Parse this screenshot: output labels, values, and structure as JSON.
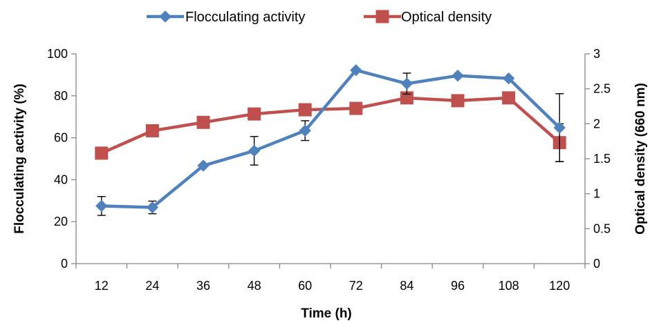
{
  "chart_data": {
    "type": "line",
    "xlabel": "Time (h)",
    "ylabel_left": "Flocculating activity (%)",
    "ylabel_right": "Optical density (660 nm)",
    "categories": [
      "12",
      "24",
      "36",
      "48",
      "60",
      "72",
      "84",
      "96",
      "108",
      "120"
    ],
    "y_left": {
      "min": 0,
      "max": 100,
      "ticks": [
        "0",
        "20",
        "40",
        "60",
        "80",
        "100"
      ]
    },
    "y_right": {
      "min": 0,
      "max": 3,
      "ticks": [
        "0",
        "0.5",
        "1",
        "1.5",
        "2",
        "2.5",
        "3"
      ]
    },
    "grid": false,
    "legend_position": "top",
    "series": [
      {
        "name": "Flocculating activity",
        "axis": "left",
        "color": "#4F81BD",
        "marker": "diamond",
        "values": [
          27.5,
          26.8,
          46.7,
          53.8,
          63.4,
          92.2,
          85.8,
          89.6,
          88.3,
          64.8
        ],
        "errors": [
          4.5,
          3.0,
          null,
          6.8,
          4.7,
          null,
          5.0,
          null,
          null,
          16.2
        ]
      },
      {
        "name": "Optical density",
        "axis": "right",
        "color": "#C0504D",
        "marker": "square",
        "values": [
          1.58,
          1.9,
          2.02,
          2.14,
          2.2,
          2.22,
          2.37,
          2.33,
          2.37,
          1.73
        ],
        "errors": [
          null,
          null,
          null,
          null,
          null,
          null,
          null,
          null,
          null,
          0.27
        ]
      }
    ]
  }
}
